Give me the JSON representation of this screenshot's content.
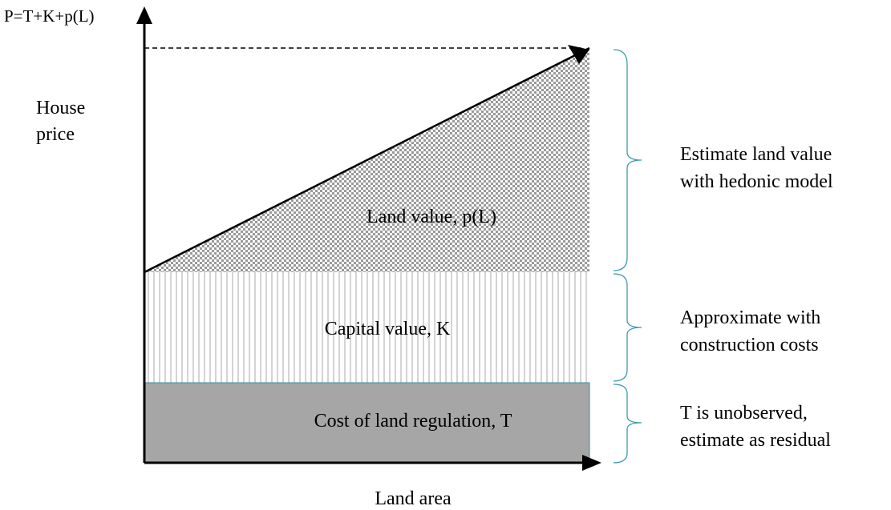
{
  "axes": {
    "y_top_label": "P=T+K+p(L)",
    "y_label": [
      "House",
      "price"
    ],
    "x_label": "Land area"
  },
  "regions": {
    "land": "Land value, p(L)",
    "capital": "Capital value, K",
    "regulation": "Cost of land regulation, T"
  },
  "notes": {
    "land": [
      "Estimate land value",
      "with hedonic model"
    ],
    "capital": [
      "Approximate with",
      "construction costs"
    ],
    "regulation": [
      "T is unobserved,",
      "estimate as residual"
    ]
  }
}
